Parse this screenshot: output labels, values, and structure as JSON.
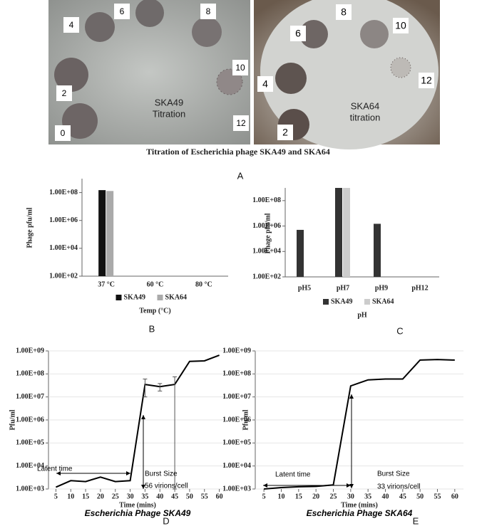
{
  "figure": {
    "plates": [
      {
        "title": [
          "SKA49",
          "Titration"
        ],
        "dilutions": [
          "0",
          "2",
          "4",
          "6",
          "8",
          "10",
          "12"
        ]
      },
      {
        "title": [
          "SKA64",
          "titration"
        ],
        "dilutions": [
          "2",
          "4",
          "6",
          "8",
          "10",
          "12"
        ]
      }
    ],
    "caption": "Titration of Escherichia phage SKA49 and SKA64",
    "panel": "A"
  },
  "chart_data": [
    {
      "type": "bar",
      "panel": "B",
      "ylabel": "Phage pfu/ml",
      "xlabel": "Temp (°C)",
      "log": true,
      "categories": [
        "37 °C",
        "60 °C",
        "80 °C"
      ],
      "series": [
        {
          "name": "SKA49",
          "color": "#111111",
          "values": [
            150000000,
            null,
            null
          ]
        },
        {
          "name": "SKA64",
          "color": "#aaaaaa",
          "values": [
            130000000,
            null,
            null
          ]
        }
      ],
      "ylim": [
        100,
        1000000000
      ],
      "yticks": [
        {
          "value": 100,
          "label": "1.00E+02"
        },
        {
          "value": 10000,
          "label": "1.00E+04"
        },
        {
          "value": 1000000,
          "label": "1.00E+06"
        },
        {
          "value": 100000000,
          "label": "1.00E+08"
        }
      ]
    },
    {
      "type": "bar",
      "panel": "C",
      "ylabel": "Phage pfu/ml",
      "xlabel": "pH",
      "log": true,
      "categories": [
        "pH5",
        "pH7",
        "pH9",
        "pH12"
      ],
      "series": [
        {
          "name": "SKA49",
          "color": "#333333",
          "values": [
            500000,
            1000000000,
            1500000,
            null
          ]
        },
        {
          "name": "SKA64",
          "color": "#cccccc",
          "values": [
            null,
            1000000000,
            null,
            null
          ]
        }
      ],
      "ylim": [
        100,
        1000000000
      ],
      "yticks": [
        {
          "value": 100,
          "label": "1.00E+02"
        },
        {
          "value": 10000,
          "label": "1.00E+04"
        },
        {
          "value": 1000000,
          "label": "1.00E+06"
        },
        {
          "value": 100000000,
          "label": "1.00E+08"
        }
      ]
    },
    {
      "type": "line",
      "panel": "D",
      "ylabel": "Pfu/ml",
      "xlabel": "Time (mins)",
      "title": "Escherichia Phage SKA49",
      "log": true,
      "annotations": [
        "Latent time",
        "Burst Size",
        "56 virions/cell"
      ],
      "x": [
        5,
        10,
        15,
        20,
        25,
        30,
        35,
        40,
        45,
        50,
        55,
        60
      ],
      "series": [
        {
          "name": "SKA49",
          "color": "#000000",
          "values": [
            1200,
            2300,
            2100,
            3300,
            2100,
            2300,
            35000000,
            28000000,
            35000000,
            350000000,
            370000000,
            650000000
          ],
          "errors": [
            null,
            null,
            null,
            null,
            null,
            null,
            25000000,
            10000000,
            40000000,
            null,
            null,
            null
          ]
        }
      ],
      "xlim": [
        2.5,
        62.5
      ],
      "xticks": [
        5,
        10,
        15,
        20,
        25,
        30,
        35,
        40,
        45,
        50,
        55,
        60
      ],
      "ylim": [
        1000,
        1000000000
      ],
      "yticks": [
        {
          "value": 1000,
          "label": "1.00E+03"
        },
        {
          "value": 10000,
          "label": "1.00E+04"
        },
        {
          "value": 100000,
          "label": "1.00E+05"
        },
        {
          "value": 1000000,
          "label": "1.00E+06"
        },
        {
          "value": 10000000,
          "label": "1.00E+07"
        },
        {
          "value": 100000000,
          "label": "1.00E+08"
        },
        {
          "value": 1000000000,
          "label": "1.00E+09"
        }
      ]
    },
    {
      "type": "line",
      "panel": "E",
      "ylabel": "Pfu/ml",
      "xlabel": "Time (mins)",
      "title": "Escherichia Phage SKA64",
      "log": true,
      "annotations": [
        "Latent time",
        "Burst Size",
        "33 virions/cell"
      ],
      "x": [
        5,
        10,
        15,
        20,
        25,
        30,
        35,
        40,
        45,
        50,
        55,
        60
      ],
      "series": [
        {
          "name": "SKA64",
          "color": "#000000",
          "values": [
            1000,
            1150,
            1250,
            1300,
            1500,
            30000000,
            55000000,
            60000000,
            60000000,
            400000000,
            420000000,
            400000000
          ]
        }
      ],
      "xlim": [
        2.5,
        62.5
      ],
      "xticks": [
        5,
        10,
        15,
        20,
        25,
        30,
        35,
        40,
        45,
        50,
        55,
        60
      ],
      "ylim": [
        1000,
        1000000000
      ],
      "yticks": [
        {
          "value": 1000,
          "label": "1.00E+03"
        },
        {
          "value": 10000,
          "label": "1.00E+04"
        },
        {
          "value": 100000,
          "label": "1.00E+05"
        },
        {
          "value": 1000000,
          "label": "1.00E+06"
        },
        {
          "value": 10000000,
          "label": "1.00E+07"
        },
        {
          "value": 100000000,
          "label": "1.00E+08"
        },
        {
          "value": 1000000000,
          "label": "1.00E+09"
        }
      ]
    }
  ]
}
